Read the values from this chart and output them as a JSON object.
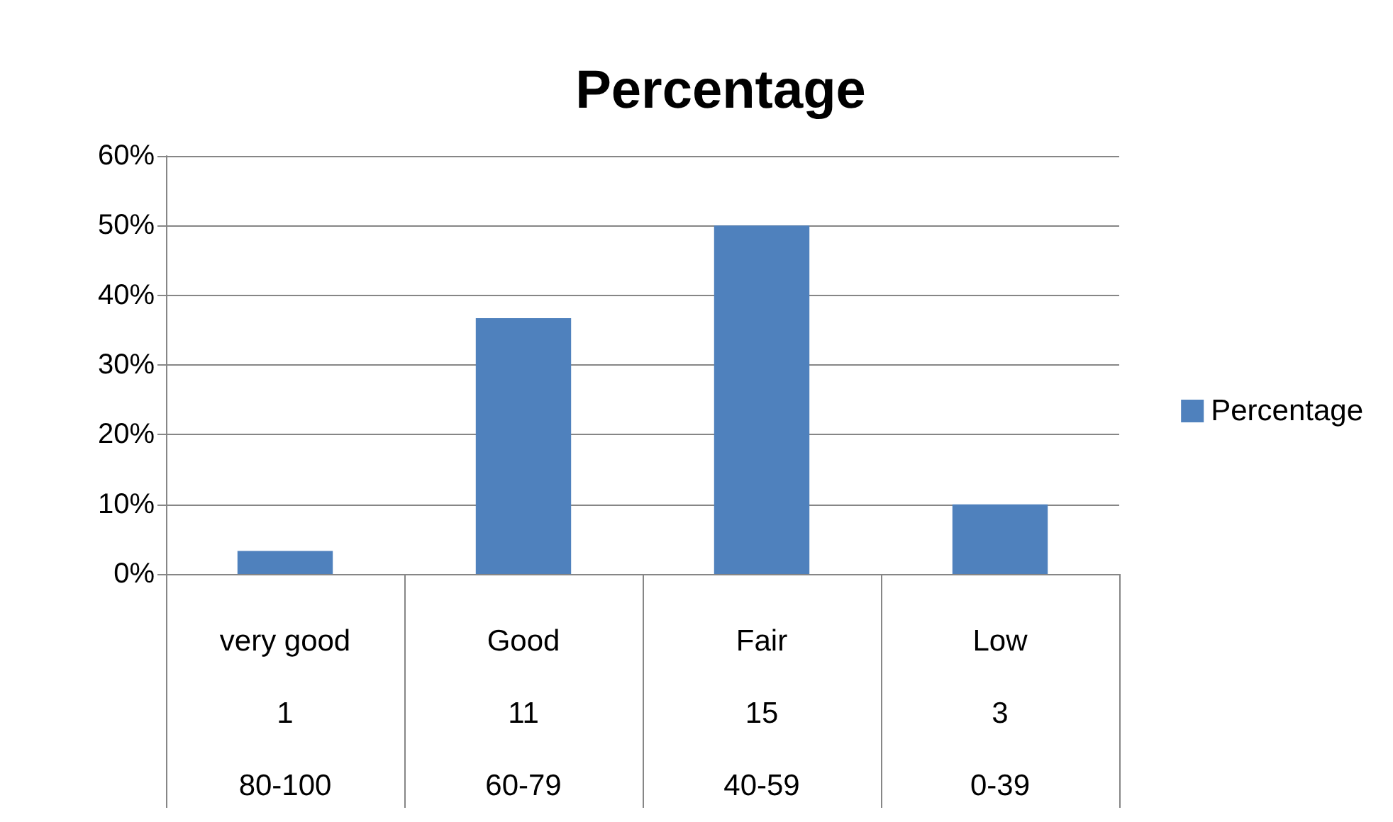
{
  "chart_data": {
    "type": "bar",
    "title": "Percentage",
    "categories": [
      "very good\n1\n80-100",
      "Good\n11\n60-79",
      "Fair\n15\n40-59",
      "Low\n3\n0-39"
    ],
    "series": [
      {
        "name": "Percentage",
        "color": "#4f81bd",
        "values": [
          3.3,
          36.7,
          50,
          10
        ]
      }
    ],
    "ylim": [
      0,
      60
    ],
    "yticks": [
      {
        "value": 0,
        "label": "0%"
      },
      {
        "value": 10,
        "label": "10%"
      },
      {
        "value": 20,
        "label": "20%"
      },
      {
        "value": 30,
        "label": "30%"
      },
      {
        "value": 40,
        "label": "40%"
      },
      {
        "value": 50,
        "label": "50%"
      },
      {
        "value": 60,
        "label": "60%"
      }
    ],
    "grid": "y",
    "legend": "right"
  }
}
